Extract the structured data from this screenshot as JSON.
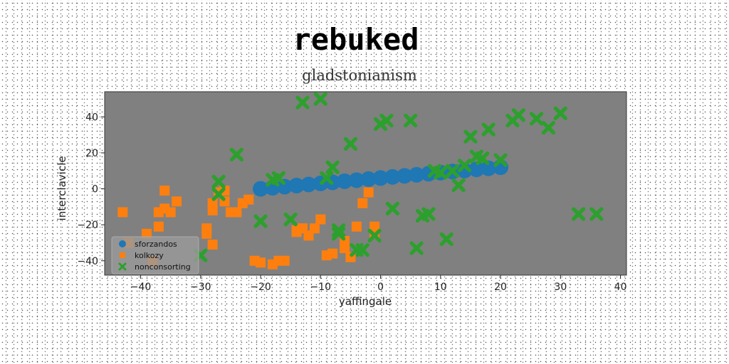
{
  "chart_data": {
    "type": "scatter",
    "title": "rebuked",
    "subtitle": "gladstonianism",
    "xlabel": "yaffingale",
    "ylabel": "interclavicle",
    "xlim": [
      -46,
      41
    ],
    "ylim": [
      -48,
      54
    ],
    "xticks": [
      -40,
      -30,
      -20,
      -10,
      0,
      10,
      20,
      30,
      40
    ],
    "yticks": [
      -40,
      -20,
      0,
      20,
      40
    ],
    "xtick_labels": [
      "−40",
      "−30",
      "−20",
      "−10",
      "0",
      "10",
      "20",
      "30",
      "40"
    ],
    "ytick_labels": [
      "−40",
      "−20",
      "0",
      "20",
      "40"
    ],
    "grid": false,
    "legend_position": "lower-left",
    "background": "#808080",
    "series": [
      {
        "name": "sforzandos",
        "marker": "circle",
        "color": "#1f77b4",
        "x": [
          -20,
          -18,
          -16,
          -14,
          -12,
          -10,
          -8,
          -6,
          -4,
          -2,
          0,
          2,
          4,
          6,
          8,
          10,
          12,
          14,
          16,
          18,
          20
        ],
        "y": [
          0,
          0.6,
          1.2,
          1.8,
          2.4,
          3,
          3.6,
          4.2,
          4.8,
          5.4,
          6,
          6.6,
          7.2,
          7.8,
          8.4,
          9,
          9.6,
          10.2,
          10.8,
          11.4,
          12
        ]
      },
      {
        "name": "kolkozy",
        "marker": "square",
        "color": "#ff7f0e",
        "x": [
          -43,
          -42,
          -39,
          -37,
          -37,
          -36,
          -35,
          -34,
          -29,
          -29,
          -28,
          -28,
          -28,
          -27,
          -26,
          -26,
          -25,
          -24,
          -23,
          -22,
          -21,
          -20,
          -18,
          -17,
          -16,
          -14,
          -14,
          -13,
          -12,
          -11,
          -10,
          -9,
          -8,
          -6,
          -6,
          -5,
          -4,
          -3,
          -2,
          -1,
          -1,
          -36,
          -38
        ],
        "y": [
          -13,
          -30,
          -25,
          -21,
          -13,
          -11,
          -13,
          -7,
          -25,
          -22,
          -31,
          -8,
          -12,
          -2,
          -1,
          -7,
          -13,
          -13,
          -8,
          -6,
          -40,
          -41,
          -42,
          -40,
          -40,
          -24,
          -23,
          -22,
          -26,
          -22,
          -17,
          -37,
          -36,
          -33,
          -29,
          -38,
          -21,
          -8,
          -2,
          -25,
          -21,
          -1,
          -40
        ]
      },
      {
        "name": "nonconsorting",
        "marker": "x",
        "color": "#2ca02c",
        "x": [
          -30,
          -27,
          -27,
          -24,
          -20,
          -18,
          -17,
          -15,
          -13,
          -10,
          -9,
          -8,
          -7,
          -7,
          -5,
          -4,
          -3,
          -1,
          0,
          1,
          2,
          5,
          6,
          7,
          8,
          9,
          10,
          11,
          12,
          13,
          14,
          15,
          16,
          17,
          18,
          20,
          22,
          23,
          26,
          28,
          30,
          33,
          36
        ],
        "y": [
          -37,
          4,
          -3,
          19,
          -18,
          5,
          6,
          -17,
          48,
          50,
          6,
          12,
          -23,
          -25,
          25,
          -34,
          -34,
          -26,
          36,
          38,
          -11,
          38,
          -33,
          -15,
          -14,
          10,
          9,
          -28,
          10,
          2,
          13,
          29,
          18,
          17,
          33,
          16,
          38,
          41,
          39,
          34,
          42,
          -14,
          -14
        ]
      }
    ]
  }
}
